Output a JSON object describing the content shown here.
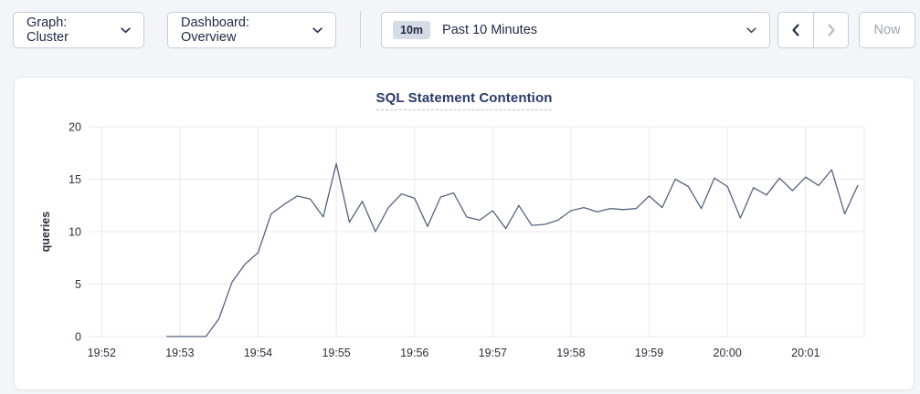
{
  "header": {
    "graph_dropdown": {
      "label": "Graph: Cluster"
    },
    "dashboard_dropdown": {
      "label": "Dashboard: Overview"
    },
    "time_picker": {
      "badge": "10m",
      "label": "Past 10 Minutes"
    },
    "now_button": {
      "label": "Now"
    },
    "icons": {
      "graph_dropdown": "chevron-down",
      "dashboard_dropdown": "chevron-down",
      "time_picker": "chevron-down",
      "prev": "chevron-left",
      "next": "chevron-right"
    }
  },
  "chart_data": {
    "type": "line",
    "title": "SQL Statement Contention",
    "xlabel": "",
    "ylabel": "queries",
    "ylim": [
      0,
      20
    ],
    "y_ticks": [
      0,
      5,
      10,
      15,
      20
    ],
    "x_ticks": [
      "19:52",
      "19:53",
      "19:54",
      "19:55",
      "19:56",
      "19:57",
      "19:58",
      "19:59",
      "20:00",
      "20:01"
    ],
    "x_domain": [
      "19:51:50",
      "20:01:45"
    ],
    "grid": true,
    "legend_position": "none",
    "series": [
      {
        "name": "queries",
        "times": [
          "19:52:50",
          "19:53:00",
          "19:53:10",
          "19:53:20",
          "19:53:30",
          "19:53:40",
          "19:53:50",
          "19:54:00",
          "19:54:10",
          "19:54:20",
          "19:54:30",
          "19:54:40",
          "19:54:50",
          "19:55:00",
          "19:55:10",
          "19:55:20",
          "19:55:30",
          "19:55:40",
          "19:55:50",
          "19:56:00",
          "19:56:10",
          "19:56:20",
          "19:56:30",
          "19:56:40",
          "19:56:50",
          "19:57:00",
          "19:57:10",
          "19:57:20",
          "19:57:30",
          "19:57:40",
          "19:57:50",
          "19:58:00",
          "19:58:10",
          "19:58:20",
          "19:58:30",
          "19:58:40",
          "19:58:50",
          "19:59:00",
          "19:59:10",
          "19:59:20",
          "19:59:30",
          "19:59:40",
          "19:59:50",
          "20:00:00",
          "20:00:10",
          "20:00:20",
          "20:00:30",
          "20:00:40",
          "20:00:50",
          "20:01:00",
          "20:01:10",
          "20:01:20",
          "20:01:30",
          "20:01:40"
        ],
        "values": [
          0,
          0,
          0,
          0,
          1.7,
          5.2,
          6.9,
          8.0,
          11.7,
          12.6,
          13.4,
          13.1,
          11.4,
          16.5,
          10.9,
          12.9,
          10.0,
          12.3,
          13.6,
          13.2,
          10.5,
          13.3,
          13.7,
          11.4,
          11.1,
          12.0,
          10.3,
          12.5,
          10.6,
          10.7,
          11.1,
          12.0,
          12.3,
          11.9,
          12.2,
          12.1,
          12.2,
          13.4,
          12.3,
          15.0,
          14.3,
          12.2,
          15.1,
          14.3,
          11.3,
          14.2,
          13.5,
          15.1,
          13.9,
          15.2,
          14.4,
          15.9,
          11.7,
          14.4
        ]
      }
    ]
  },
  "colors": {
    "page_background": "#f4f5f9",
    "card_background": "#ffffff",
    "control_border": "#c6cdd9",
    "text_navy": "#1e2a43",
    "disabled_text": "#9ba3b2",
    "disabled_icon": "#b3bac7",
    "badge_background": "#d6dbe7",
    "title_navy": "#2a3b69",
    "title_underline": "#b4c0d6",
    "line_color": "#55627f",
    "grid_color": "#e8e8e8",
    "axis_text": "#27303c"
  }
}
